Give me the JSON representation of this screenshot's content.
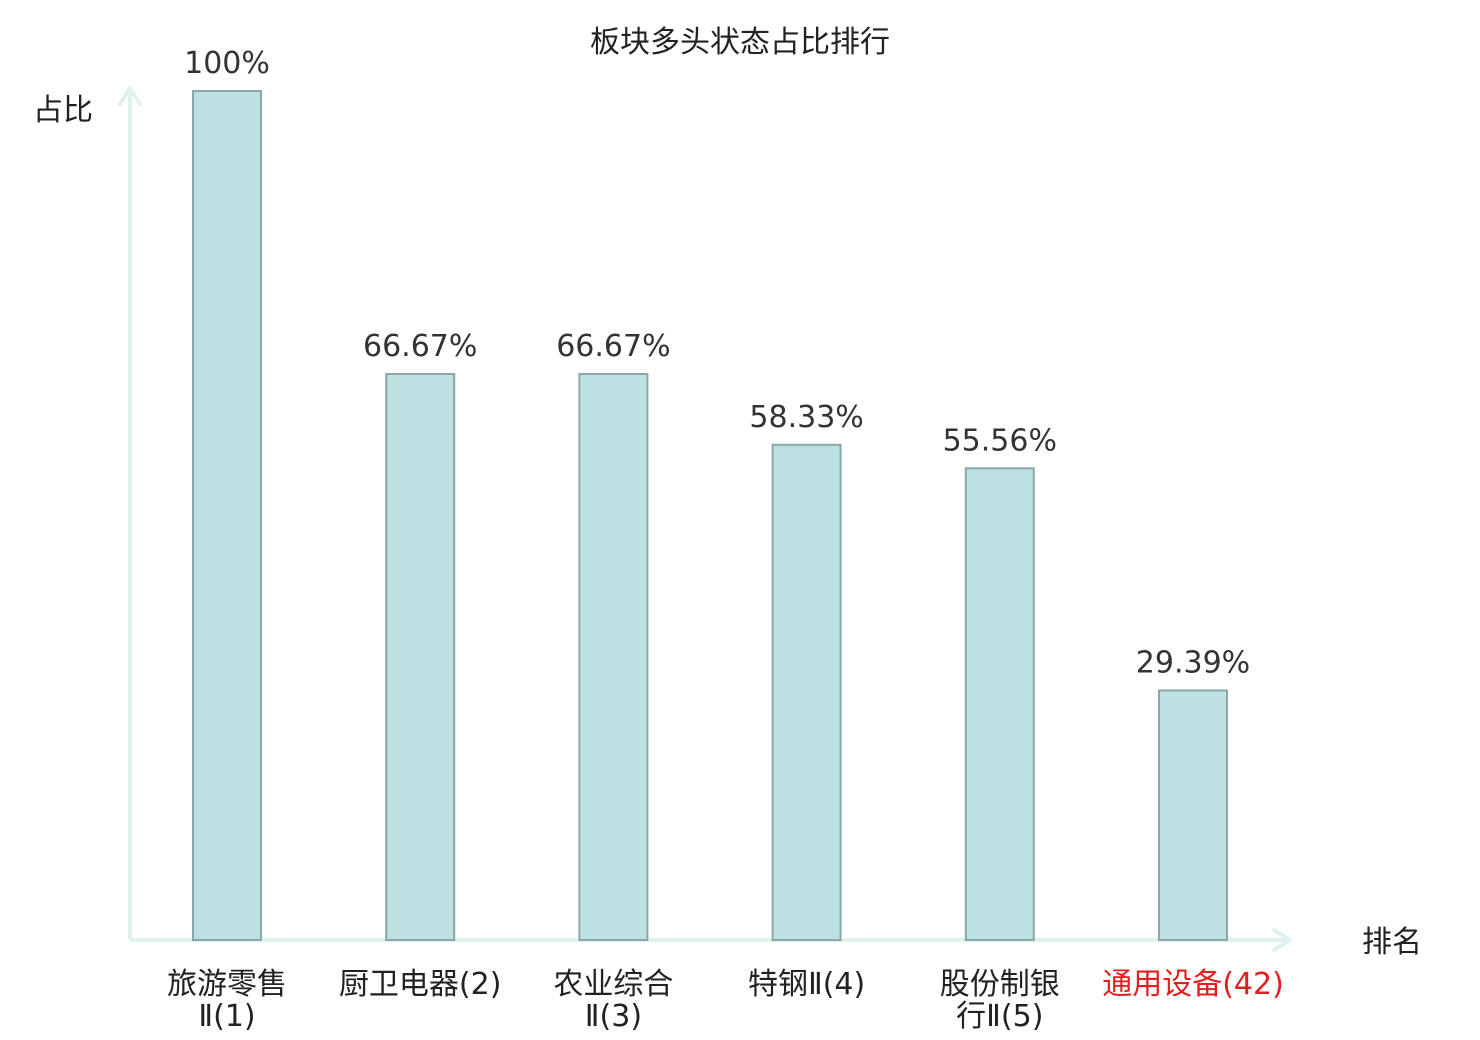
{
  "chart_data": {
    "type": "bar",
    "title": "板块多头状态占比排行",
    "xlabel": "排名",
    "ylabel": "占比",
    "ylim": [
      0,
      100
    ],
    "grid": false,
    "categories": [
      {
        "name": "旅游零售Ⅱ",
        "rank": "(1)",
        "line1": "旅游零售",
        "line2": "Ⅱ(1)",
        "highlight": false
      },
      {
        "name": "厨卫电器",
        "rank": "(2)",
        "line1": "厨卫电器(2)",
        "line2": "",
        "highlight": false
      },
      {
        "name": "农业综合Ⅱ",
        "rank": "(3)",
        "line1": "农业综合",
        "line2": "Ⅱ(3)",
        "highlight": false
      },
      {
        "name": "特钢Ⅱ",
        "rank": "(4)",
        "line1": "特钢Ⅱ(4)",
        "line2": "",
        "highlight": false
      },
      {
        "name": "股份制银行Ⅱ",
        "rank": "(5)",
        "line1": "股份制银",
        "line2": "行Ⅱ(5)",
        "highlight": false
      },
      {
        "name": "通用设备",
        "rank": "(42)",
        "line1": "通用设备(42)",
        "line2": "",
        "highlight": true
      }
    ],
    "values": [
      100,
      66.67,
      66.67,
      58.33,
      55.56,
      29.39
    ],
    "value_labels": [
      "100%",
      "66.67%",
      "66.67%",
      "58.33%",
      "55.56%",
      "29.39%"
    ],
    "colors": {
      "bar_fill": "#bde0e3",
      "bar_stroke": "#8aa7aa",
      "axis": "#e0f2ef",
      "highlight_text": "#e02020",
      "text": "#222222"
    }
  }
}
